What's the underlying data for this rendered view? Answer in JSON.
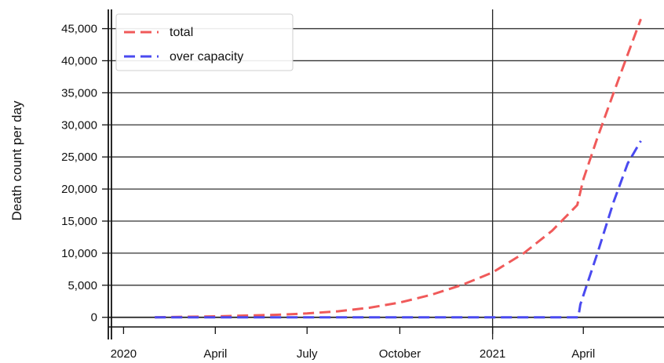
{
  "chart_data": {
    "type": "line",
    "title": "",
    "xlabel": "",
    "ylabel": "Death count per day",
    "ylim": [
      -1500,
      48000
    ],
    "xlim": [
      "2019-12-20",
      "2021-06-20"
    ],
    "x_ticks": [
      {
        "date": "2020-01-01",
        "label": "2020"
      },
      {
        "date": "2020-04-01",
        "label": "April"
      },
      {
        "date": "2020-07-01",
        "label": "July"
      },
      {
        "date": "2020-10-01",
        "label": "October"
      },
      {
        "date": "2021-01-01",
        "label": "2021"
      },
      {
        "date": "2021-04-01",
        "label": "April"
      }
    ],
    "y_ticks": [
      {
        "value": 0,
        "label": "0"
      },
      {
        "value": 5000,
        "label": "5,000"
      },
      {
        "value": 10000,
        "label": "10,000"
      },
      {
        "value": 15000,
        "label": "15,000"
      },
      {
        "value": 20000,
        "label": "20,000"
      },
      {
        "value": 25000,
        "label": "25,000"
      },
      {
        "value": 30000,
        "label": "30,000"
      },
      {
        "value": 35000,
        "label": "35,000"
      },
      {
        "value": 40000,
        "label": "40,000"
      },
      {
        "value": 45000,
        "label": "45,000"
      }
    ],
    "grid": {
      "horizontal": true,
      "vertical": false
    },
    "reference_lines": [
      {
        "date": "2021-01-01"
      }
    ],
    "legend": "top-left",
    "series": [
      {
        "name": "total",
        "color": "#f05a5a",
        "style": "dashed",
        "points": [
          [
            "2020-02-01",
            0
          ],
          [
            "2020-04-01",
            150
          ],
          [
            "2020-06-01",
            400
          ],
          [
            "2020-07-01",
            600
          ],
          [
            "2020-08-01",
            950
          ],
          [
            "2020-09-01",
            1500
          ],
          [
            "2020-10-01",
            2300
          ],
          [
            "2020-11-01",
            3500
          ],
          [
            "2020-12-01",
            5000
          ],
          [
            "2021-01-01",
            7000
          ],
          [
            "2021-02-01",
            10000
          ],
          [
            "2021-03-01",
            13500
          ],
          [
            "2021-03-26",
            17500
          ],
          [
            "2021-04-01",
            21500
          ],
          [
            "2021-04-15",
            28000
          ],
          [
            "2021-05-01",
            35000
          ],
          [
            "2021-05-15",
            41000
          ],
          [
            "2021-05-28",
            46500
          ]
        ]
      },
      {
        "name": "over capacity",
        "color": "#4a4af0",
        "style": "dashed",
        "points": [
          [
            "2020-02-01",
            0
          ],
          [
            "2020-06-01",
            0
          ],
          [
            "2020-10-01",
            0
          ],
          [
            "2021-01-01",
            0
          ],
          [
            "2021-03-27",
            0
          ],
          [
            "2021-03-29",
            2000
          ],
          [
            "2021-04-15",
            10000
          ],
          [
            "2021-05-01",
            18000
          ],
          [
            "2021-05-15",
            24000
          ],
          [
            "2021-05-28",
            27500
          ]
        ]
      }
    ]
  }
}
